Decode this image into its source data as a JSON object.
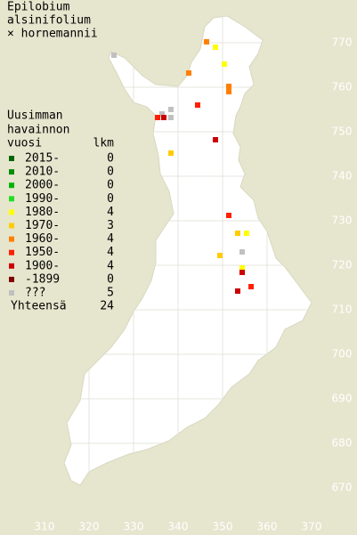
{
  "title": [
    "Epilobium",
    "alsinifolium",
    "× hornemannii"
  ],
  "legend": {
    "heading": [
      "Uusimman",
      "havainnon"
    ],
    "col_year": "vuosi",
    "col_count": "lkm",
    "classes": [
      {
        "label": "2015-",
        "count": 0,
        "color": "#006400"
      },
      {
        "label": "2010-",
        "count": 0,
        "color": "#008c00"
      },
      {
        "label": "2000-",
        "count": 0,
        "color": "#00b400"
      },
      {
        "label": "1990-",
        "count": 0,
        "color": "#22dd22"
      },
      {
        "label": "1980-",
        "count": 4,
        "color": "#ffff00"
      },
      {
        "label": "1970-",
        "count": 3,
        "color": "#ffcc00"
      },
      {
        "label": "1960-",
        "count": 4,
        "color": "#ff8000"
      },
      {
        "label": "1950-",
        "count": 4,
        "color": "#ff2000"
      },
      {
        "label": "1900-",
        "count": 4,
        "color": "#cc0000"
      },
      {
        "label": "-1899",
        "count": 0,
        "color": "#800000"
      },
      {
        "label": "???",
        "count": 5,
        "color": "#c0c0c0"
      }
    ],
    "total_label": "Yhteensä",
    "total": 24
  },
  "xticks": [
    310,
    320,
    330,
    340,
    350,
    360,
    370
  ],
  "yticks": [
    770,
    760,
    750,
    740,
    730,
    720,
    710,
    700,
    690,
    680,
    670
  ],
  "points": [
    {
      "x": 346.4,
      "y": 770.2,
      "class": 6
    },
    {
      "x": 348.4,
      "y": 769,
      "class": 4
    },
    {
      "x": 325.6,
      "y": 767.2,
      "class": 10
    },
    {
      "x": 350.4,
      "y": 765.2,
      "class": 4
    },
    {
      "x": 342.4,
      "y": 763.2,
      "class": 6
    },
    {
      "x": 351.4,
      "y": 760.2,
      "class": 6
    },
    {
      "x": 351.4,
      "y": 759,
      "class": 6
    },
    {
      "x": 344.4,
      "y": 756,
      "class": 7
    },
    {
      "x": 338.4,
      "y": 755,
      "class": 10
    },
    {
      "x": 336.4,
      "y": 754,
      "class": 10
    },
    {
      "x": 335.4,
      "y": 753.2,
      "class": 7
    },
    {
      "x": 336.8,
      "y": 753.2,
      "class": 8
    },
    {
      "x": 338.4,
      "y": 753.2,
      "class": 10
    },
    {
      "x": 348.4,
      "y": 748.2,
      "class": 8
    },
    {
      "x": 338.4,
      "y": 745.2,
      "class": 5
    },
    {
      "x": 351.4,
      "y": 731.2,
      "class": 7
    },
    {
      "x": 353.4,
      "y": 727.2,
      "class": 5
    },
    {
      "x": 355.4,
      "y": 727.2,
      "class": 4
    },
    {
      "x": 354.4,
      "y": 723,
      "class": 10
    },
    {
      "x": 349.4,
      "y": 722.2,
      "class": 5
    },
    {
      "x": 354.4,
      "y": 719.4,
      "class": 4
    },
    {
      "x": 354.4,
      "y": 718.4,
      "class": 8
    },
    {
      "x": 356.4,
      "y": 715.2,
      "class": 7
    },
    {
      "x": 353.4,
      "y": 714.2,
      "class": 8
    }
  ]
}
